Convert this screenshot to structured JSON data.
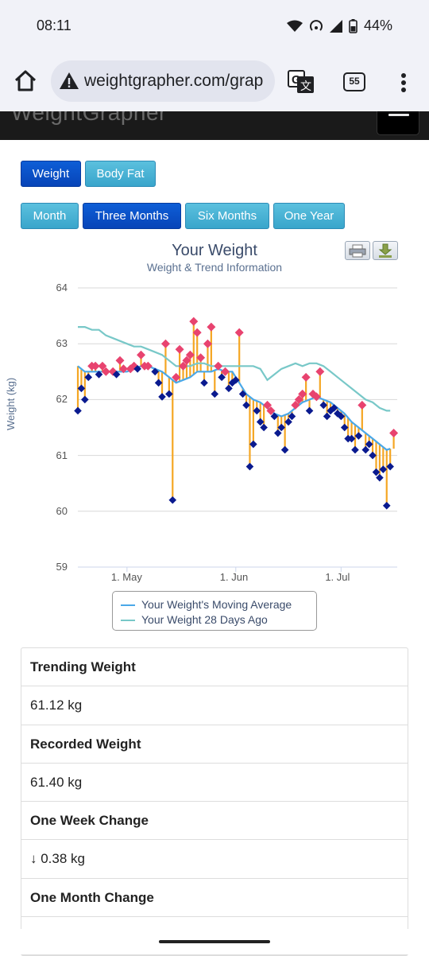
{
  "status_bar": {
    "time": "08:11",
    "battery": "44%"
  },
  "browser": {
    "url": "weightgrapher.com/grap",
    "tab_count": "55"
  },
  "site": {
    "logo": "WeightGrapher"
  },
  "type_buttons": [
    {
      "label": "Weight",
      "active": true
    },
    {
      "label": "Body Fat",
      "active": false
    }
  ],
  "range_buttons": [
    {
      "label": "Month",
      "active": false
    },
    {
      "label": "Three Months",
      "active": true
    },
    {
      "label": "Six Months",
      "active": false
    },
    {
      "label": "One Year",
      "active": false
    }
  ],
  "chart": {
    "title": "Your Weight",
    "subtitle": "Weight & Trend Information",
    "ylabel": "Weight (kg)",
    "legend": [
      {
        "label": "Your Weight's Moving Average",
        "color": "#4aa8e8"
      },
      {
        "label": "Your Weight 28 Days Ago",
        "color": "#78c8c8"
      }
    ]
  },
  "chart_data": {
    "type": "line",
    "title": "Your Weight",
    "subtitle": "Weight & Trend Information",
    "xlabel": "",
    "ylabel": "Weight (kg)",
    "ylim": [
      59,
      64
    ],
    "yticks": [
      59,
      60,
      61,
      62,
      63,
      64
    ],
    "xlim": [
      "2025-04-17",
      "2025-07-17"
    ],
    "xticks": [
      {
        "label": "1. May",
        "date": "2025-05-01"
      },
      {
        "label": "1. Jun",
        "date": "2025-06-01"
      },
      {
        "label": "1. Jul",
        "date": "2025-07-01"
      }
    ],
    "grid": true,
    "legend_position": "bottom-center",
    "colors": {
      "weight_above_trend": "#e8436f",
      "weight_below_trend": "#0a1a8f",
      "deviation_bar": "#f5a623",
      "moving_average": "#4aa8e8",
      "weight_28_days_ago": "#78c8c8"
    },
    "series": [
      {
        "name": "Your Weight's Moving Average",
        "points": [
          [
            "2025-04-17",
            62.6
          ],
          [
            "2025-04-19",
            62.5
          ],
          [
            "2025-04-21",
            62.5
          ],
          [
            "2025-04-23",
            62.5
          ],
          [
            "2025-04-25",
            62.5
          ],
          [
            "2025-04-27",
            62.5
          ],
          [
            "2025-04-29",
            62.5
          ],
          [
            "2025-05-01",
            62.5
          ],
          [
            "2025-05-03",
            62.55
          ],
          [
            "2025-05-05",
            62.6
          ],
          [
            "2025-05-07",
            62.6
          ],
          [
            "2025-05-09",
            62.55
          ],
          [
            "2025-05-11",
            62.5
          ],
          [
            "2025-05-13",
            62.4
          ],
          [
            "2025-05-15",
            62.3
          ],
          [
            "2025-05-17",
            62.35
          ],
          [
            "2025-05-19",
            62.4
          ],
          [
            "2025-05-21",
            62.5
          ],
          [
            "2025-05-23",
            62.5
          ],
          [
            "2025-05-25",
            62.5
          ],
          [
            "2025-05-27",
            62.55
          ],
          [
            "2025-05-29",
            62.5
          ],
          [
            "2025-05-31",
            62.5
          ],
          [
            "2025-06-02",
            62.3
          ],
          [
            "2025-06-04",
            62.1
          ],
          [
            "2025-06-06",
            62.0
          ],
          [
            "2025-06-08",
            61.95
          ],
          [
            "2025-06-10",
            61.85
          ],
          [
            "2025-06-12",
            61.75
          ],
          [
            "2025-06-14",
            61.7
          ],
          [
            "2025-06-16",
            61.75
          ],
          [
            "2025-06-18",
            61.85
          ],
          [
            "2025-06-20",
            61.95
          ],
          [
            "2025-06-22",
            62.0
          ],
          [
            "2025-06-24",
            62.05
          ],
          [
            "2025-06-26",
            62.0
          ],
          [
            "2025-06-28",
            61.95
          ],
          [
            "2025-06-30",
            61.85
          ],
          [
            "2025-07-02",
            61.75
          ],
          [
            "2025-07-04",
            61.6
          ],
          [
            "2025-07-06",
            61.5
          ],
          [
            "2025-07-08",
            61.4
          ],
          [
            "2025-07-10",
            61.3
          ],
          [
            "2025-07-12",
            61.2
          ],
          [
            "2025-07-14",
            61.1
          ],
          [
            "2025-07-15",
            61.12
          ]
        ]
      },
      {
        "name": "Your Weight 28 Days Ago",
        "points": [
          [
            "2025-04-17",
            63.3
          ],
          [
            "2025-04-19",
            63.3
          ],
          [
            "2025-04-21",
            63.25
          ],
          [
            "2025-04-23",
            63.25
          ],
          [
            "2025-04-25",
            63.15
          ],
          [
            "2025-04-27",
            63.1
          ],
          [
            "2025-04-29",
            63.05
          ],
          [
            "2025-05-01",
            63.0
          ],
          [
            "2025-05-03",
            62.95
          ],
          [
            "2025-05-05",
            62.95
          ],
          [
            "2025-05-07",
            62.9
          ],
          [
            "2025-05-09",
            62.85
          ],
          [
            "2025-05-11",
            62.8
          ],
          [
            "2025-05-13",
            62.7
          ],
          [
            "2025-05-15",
            62.6
          ],
          [
            "2025-05-17",
            62.6
          ],
          [
            "2025-05-19",
            62.6
          ],
          [
            "2025-05-21",
            62.65
          ],
          [
            "2025-05-23",
            62.65
          ],
          [
            "2025-05-25",
            62.6
          ],
          [
            "2025-05-27",
            62.6
          ],
          [
            "2025-05-29",
            62.6
          ],
          [
            "2025-05-31",
            62.6
          ],
          [
            "2025-06-02",
            62.6
          ],
          [
            "2025-06-04",
            62.6
          ],
          [
            "2025-06-06",
            62.6
          ],
          [
            "2025-06-08",
            62.55
          ],
          [
            "2025-06-10",
            62.35
          ],
          [
            "2025-06-12",
            62.45
          ],
          [
            "2025-06-14",
            62.55
          ],
          [
            "2025-06-16",
            62.6
          ],
          [
            "2025-06-18",
            62.65
          ],
          [
            "2025-06-20",
            62.6
          ],
          [
            "2025-06-22",
            62.65
          ],
          [
            "2025-06-24",
            62.65
          ],
          [
            "2025-06-26",
            62.6
          ],
          [
            "2025-06-28",
            62.5
          ],
          [
            "2025-06-30",
            62.4
          ],
          [
            "2025-07-02",
            62.3
          ],
          [
            "2025-07-04",
            62.2
          ],
          [
            "2025-07-06",
            62.1
          ],
          [
            "2025-07-08",
            62.0
          ],
          [
            "2025-07-10",
            61.95
          ],
          [
            "2025-07-12",
            61.85
          ],
          [
            "2025-07-14",
            61.8
          ],
          [
            "2025-07-15",
            61.8
          ]
        ]
      },
      {
        "name": "",
        "points": [
          [
            "2025-04-17",
            61.8
          ],
          [
            "2025-04-18",
            62.2
          ],
          [
            "2025-04-19",
            62.0
          ],
          [
            "2025-04-20",
            62.4
          ],
          [
            "2025-04-21",
            62.6
          ],
          [
            "2025-04-22",
            62.6
          ],
          [
            "2025-04-23",
            62.45
          ],
          [
            "2025-04-24",
            62.6
          ],
          [
            "2025-04-25",
            62.5
          ],
          [
            "2025-04-27",
            62.5
          ],
          [
            "2025-04-28",
            62.45
          ],
          [
            "2025-04-29",
            62.7
          ],
          [
            "2025-04-30",
            62.55
          ],
          [
            "2025-05-02",
            62.55
          ],
          [
            "2025-05-03",
            62.6
          ],
          [
            "2025-05-04",
            62.55
          ],
          [
            "2025-05-05",
            62.8
          ],
          [
            "2025-05-06",
            62.6
          ],
          [
            "2025-05-07",
            62.6
          ],
          [
            "2025-05-09",
            62.5
          ],
          [
            "2025-05-10",
            62.3
          ],
          [
            "2025-05-11",
            62.05
          ],
          [
            "2025-05-12",
            63.0
          ],
          [
            "2025-05-13",
            62.1
          ],
          [
            "2025-05-14",
            60.2
          ],
          [
            "2025-05-15",
            62.4
          ],
          [
            "2025-05-16",
            62.9
          ],
          [
            "2025-05-17",
            62.6
          ],
          [
            "2025-05-18",
            62.7
          ],
          [
            "2025-05-19",
            62.8
          ],
          [
            "2025-05-20",
            63.4
          ],
          [
            "2025-05-21",
            63.2
          ],
          [
            "2025-05-22",
            62.75
          ],
          [
            "2025-05-23",
            62.3
          ],
          [
            "2025-05-24",
            63.0
          ],
          [
            "2025-05-25",
            63.3
          ],
          [
            "2025-05-26",
            62.1
          ],
          [
            "2025-05-27",
            62.6
          ],
          [
            "2025-05-28",
            62.4
          ],
          [
            "2025-05-29",
            62.5
          ],
          [
            "2025-05-30",
            62.2
          ],
          [
            "2025-05-31",
            62.3
          ],
          [
            "2025-06-01",
            62.35
          ],
          [
            "2025-06-02",
            63.2
          ],
          [
            "2025-06-03",
            62.1
          ],
          [
            "2025-06-04",
            61.9
          ],
          [
            "2025-06-05",
            60.8
          ],
          [
            "2025-06-06",
            61.2
          ],
          [
            "2025-06-07",
            61.8
          ],
          [
            "2025-06-08",
            61.6
          ],
          [
            "2025-06-09",
            61.5
          ],
          [
            "2025-06-10",
            61.9
          ],
          [
            "2025-06-11",
            61.8
          ],
          [
            "2025-06-12",
            61.7
          ],
          [
            "2025-06-13",
            61.4
          ],
          [
            "2025-06-14",
            61.5
          ],
          [
            "2025-06-15",
            61.1
          ],
          [
            "2025-06-16",
            61.6
          ],
          [
            "2025-06-17",
            61.7
          ],
          [
            "2025-06-18",
            61.9
          ],
          [
            "2025-06-19",
            62.0
          ],
          [
            "2025-06-20",
            62.1
          ],
          [
            "2025-06-21",
            62.4
          ],
          [
            "2025-06-22",
            61.8
          ],
          [
            "2025-06-23",
            62.1
          ],
          [
            "2025-06-24",
            62.05
          ],
          [
            "2025-06-25",
            62.5
          ],
          [
            "2025-06-26",
            61.9
          ],
          [
            "2025-06-27",
            61.7
          ],
          [
            "2025-06-28",
            61.8
          ],
          [
            "2025-06-29",
            61.85
          ],
          [
            "2025-06-30",
            61.75
          ],
          [
            "2025-07-01",
            61.7
          ],
          [
            "2025-07-02",
            61.5
          ],
          [
            "2025-07-03",
            61.3
          ],
          [
            "2025-07-04",
            61.3
          ],
          [
            "2025-07-05",
            61.1
          ],
          [
            "2025-07-06",
            61.35
          ],
          [
            "2025-07-07",
            61.9
          ],
          [
            "2025-07-08",
            61.1
          ],
          [
            "2025-07-09",
            61.2
          ],
          [
            "2025-07-10",
            61.0
          ],
          [
            "2025-07-11",
            60.7
          ],
          [
            "2025-07-12",
            60.6
          ],
          [
            "2025-07-13",
            60.75
          ],
          [
            "2025-07-14",
            60.1
          ],
          [
            "2025-07-15",
            60.8
          ],
          [
            "2025-07-16",
            61.4
          ]
        ]
      }
    ]
  },
  "stats": [
    {
      "label": "Trending Weight",
      "value": "61.12 kg"
    },
    {
      "label": "Recorded Weight",
      "value": "61.40 kg"
    },
    {
      "label": "One Week Change",
      "value": "↓ 0.38 kg"
    },
    {
      "label": "One Month Change",
      "value": ""
    }
  ]
}
